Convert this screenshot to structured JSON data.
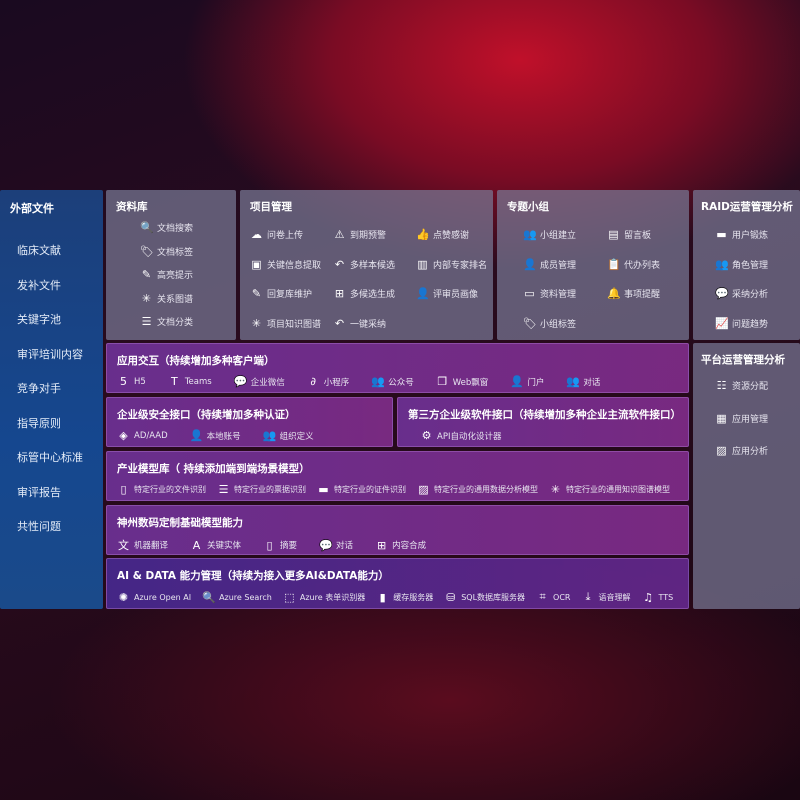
{
  "sidebar": {
    "title": "外部文件",
    "items": [
      "临床文献",
      "发补文件",
      "关键字池",
      "审评培训内容",
      "竞争对手",
      "指导原则",
      "标管中心标准",
      "审评报告",
      "共性问题"
    ]
  },
  "library": {
    "title": "资料库",
    "items": [
      {
        "icon": "document-search-icon",
        "g": "🔍",
        "label": "文档搜索"
      },
      {
        "icon": "tag-icon",
        "g": "🏷",
        "label": "文档标签"
      },
      {
        "icon": "pen-icon",
        "g": "✎",
        "label": "高亮提示"
      },
      {
        "icon": "graph-icon",
        "g": "✳",
        "label": "关系图谱"
      },
      {
        "icon": "document-list-icon",
        "g": "☰",
        "label": "文档分类"
      }
    ]
  },
  "project": {
    "title": "项目管理",
    "items": [
      {
        "icon": "cloud-upload-icon",
        "g": "☁",
        "label": "问卷上传"
      },
      {
        "icon": "alarm-icon",
        "g": "⚠",
        "label": "到期预警"
      },
      {
        "icon": "thumbs-up-icon",
        "g": "👍",
        "label": "点赞感谢"
      },
      {
        "icon": "window-icon",
        "g": "▣",
        "label": "关键信息提取"
      },
      {
        "icon": "reply-icon",
        "g": "↶",
        "label": "多样本候选"
      },
      {
        "icon": "ranking-icon",
        "g": "▥",
        "label": "内部专家排名"
      },
      {
        "icon": "edit-icon",
        "g": "✎",
        "label": "回复库维护"
      },
      {
        "icon": "puzzle-icon",
        "g": "⊞",
        "label": "多候选生成"
      },
      {
        "icon": "user-icon",
        "g": "👤",
        "label": "评审员画像"
      },
      {
        "icon": "graph-icon",
        "g": "✳",
        "label": "项目知识图谱"
      },
      {
        "icon": "reply-icon",
        "g": "↶",
        "label": "一键采纳"
      }
    ]
  },
  "group": {
    "title": "专题小组",
    "items": [
      {
        "icon": "users-icon",
        "g": "👥",
        "label": "小组建立"
      },
      {
        "icon": "bbs-icon",
        "g": "▤",
        "label": "留言板"
      },
      {
        "icon": "user-add-icon",
        "g": "👤",
        "label": "成员管理"
      },
      {
        "icon": "clipboard-icon",
        "g": "📋",
        "label": "代办列表"
      },
      {
        "icon": "folder-icon",
        "g": "▭",
        "label": "资料管理"
      },
      {
        "icon": "bell-icon",
        "g": "🔔",
        "label": "事项提醒"
      },
      {
        "icon": "tag-icon",
        "g": "🏷",
        "label": "小组标签"
      }
    ]
  },
  "raid": {
    "title": "RAID运营管理分析",
    "items": [
      {
        "icon": "id-card-icon",
        "g": "▬",
        "label": "用户锻炼"
      },
      {
        "icon": "users-icon",
        "g": "👥",
        "label": "角色管理"
      },
      {
        "icon": "qa-icon",
        "g": "💬",
        "label": "采纳分析"
      },
      {
        "icon": "trend-icon",
        "g": "📈",
        "label": "问题趋势"
      }
    ]
  },
  "platform": {
    "title": "平台运营管理分析",
    "items": [
      {
        "icon": "checklist-icon",
        "g": "☷",
        "label": "资源分配"
      },
      {
        "icon": "apps-icon",
        "g": "▦",
        "label": "应用管理"
      },
      {
        "icon": "analytics-icon",
        "g": "▨",
        "label": "应用分析"
      }
    ]
  },
  "app": {
    "title": "应用交互（持续增加多种客户端）",
    "items": [
      {
        "icon": "html5-icon",
        "g": "5",
        "label": "H5"
      },
      {
        "icon": "teams-icon",
        "g": "T",
        "label": "Teams"
      },
      {
        "icon": "wechat-work-icon",
        "g": "💬",
        "label": "企业微信"
      },
      {
        "icon": "miniprogram-icon",
        "g": "∂",
        "label": "小程序"
      },
      {
        "icon": "official-account-icon",
        "g": "👥",
        "label": "公众号"
      },
      {
        "icon": "web-window-icon",
        "g": "❐",
        "label": "Web飘窗"
      },
      {
        "icon": "portal-icon",
        "g": "👤",
        "label": "门户"
      },
      {
        "icon": "chat-icon",
        "g": "👥",
        "label": "对话"
      }
    ]
  },
  "security": {
    "title": "企业级安全接口（持续增加多种认证）",
    "items": [
      {
        "icon": "azure-ad-icon",
        "g": "◈",
        "label": "AD/AAD"
      },
      {
        "icon": "local-account-icon",
        "g": "👤",
        "label": "本地账号"
      },
      {
        "icon": "organization-icon",
        "g": "👥",
        "label": "组织定义"
      }
    ]
  },
  "thirdparty": {
    "title": "第三方企业级软件接口（持续增加多种企业主流软件接口）",
    "items": [
      {
        "icon": "gear-icon",
        "g": "⚙",
        "label": "API自动化设计器"
      }
    ]
  },
  "industry": {
    "title": "产业模型库（ 持续添加端到端场景模型）",
    "items": [
      {
        "icon": "file-icon",
        "g": "▯",
        "label": "特定行业的文件识别"
      },
      {
        "icon": "receipt-icon",
        "g": "☰",
        "label": "特定行业的票据识别"
      },
      {
        "icon": "id-card-icon",
        "g": "▬",
        "label": "特定行业的证件识别"
      },
      {
        "icon": "chart-icon",
        "g": "▨",
        "label": "特定行业的通用数据分析模型"
      },
      {
        "icon": "graph-icon",
        "g": "✳",
        "label": "特定行业的通用知识图谱模型"
      }
    ]
  },
  "foundation": {
    "title": "神州数码定制基础模型能力",
    "items": [
      {
        "icon": "translate-icon",
        "g": "文",
        "label": "机器翻译"
      },
      {
        "icon": "entity-icon",
        "g": "A",
        "label": "关键实体"
      },
      {
        "icon": "summary-icon",
        "g": "▯",
        "label": "摘要"
      },
      {
        "icon": "chat-icon",
        "g": "💬",
        "label": "对话"
      },
      {
        "icon": "compose-icon",
        "g": "⊞",
        "label": "内容合成"
      }
    ]
  },
  "aidata": {
    "title": "AI & DATA 能力管理（持续为接入更多AI&DATA能力）",
    "items": [
      {
        "icon": "openai-icon",
        "g": "✺",
        "label": "Azure Open AI"
      },
      {
        "icon": "search-icon",
        "g": "🔍",
        "label": "Azure Search"
      },
      {
        "icon": "form-recognizer-icon",
        "g": "⬚",
        "label": "Azure 表单识别器"
      },
      {
        "icon": "cache-server-icon",
        "g": "▮",
        "label": "缓存服务器"
      },
      {
        "icon": "sql-icon",
        "g": "⛁",
        "label": "SQL数据库服务器"
      },
      {
        "icon": "ocr-icon",
        "g": "⌗",
        "label": "OCR"
      },
      {
        "icon": "speech-icon",
        "g": "⤓",
        "label": "语音理解"
      },
      {
        "icon": "tts-icon",
        "g": "♫",
        "label": "TTS"
      }
    ]
  }
}
